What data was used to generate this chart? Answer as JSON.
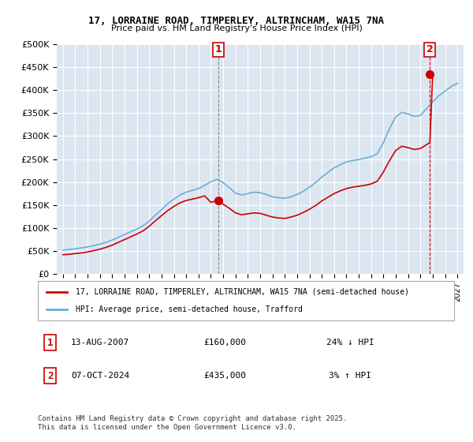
{
  "title": "17, LORRAINE ROAD, TIMPERLEY, ALTRINCHAM, WA15 7NA",
  "subtitle": "Price paid vs. HM Land Registry's House Price Index (HPI)",
  "ylabel": "",
  "xlabel": "",
  "ylim": [
    0,
    500000
  ],
  "yticks": [
    0,
    50000,
    100000,
    150000,
    200000,
    250000,
    300000,
    350000,
    400000,
    450000,
    500000
  ],
  "ytick_labels": [
    "£0",
    "£50K",
    "£100K",
    "£150K",
    "£200K",
    "£250K",
    "£300K",
    "£350K",
    "£400K",
    "£450K",
    "£500K"
  ],
  "xlim_start": 1994.5,
  "xlim_end": 2027.5,
  "xticks": [
    1995,
    1996,
    1997,
    1998,
    1999,
    2000,
    2001,
    2002,
    2003,
    2004,
    2005,
    2006,
    2007,
    2008,
    2009,
    2010,
    2011,
    2012,
    2013,
    2014,
    2015,
    2016,
    2017,
    2018,
    2019,
    2020,
    2021,
    2022,
    2023,
    2024,
    2025,
    2026,
    2027
  ],
  "background_color": "#dce6f1",
  "plot_bg_color": "#dce6f1",
  "grid_color": "#ffffff",
  "line_color_hpi": "#6baed6",
  "line_color_price": "#cc0000",
  "point1_x": 2007.617,
  "point1_y": 160000,
  "point2_x": 2024.769,
  "point2_y": 435000,
  "point1_label": "1",
  "point2_label": "2",
  "legend_line1": "17, LORRAINE ROAD, TIMPERLEY, ALTRINCHAM, WA15 7NA (semi-detached house)",
  "legend_line2": "HPI: Average price, semi-detached house, Trafford",
  "table_row1_num": "1",
  "table_row1_date": "13-AUG-2007",
  "table_row1_price": "£160,000",
  "table_row1_hpi": "24% ↓ HPI",
  "table_row2_num": "2",
  "table_row2_date": "07-OCT-2024",
  "table_row2_price": "£435,000",
  "table_row2_hpi": "3% ↑ HPI",
  "footnote": "Contains HM Land Registry data © Crown copyright and database right 2025.\nThis data is licensed under the Open Government Licence v3.0.",
  "hpi_years": [
    1995,
    1995.5,
    1996,
    1996.5,
    1997,
    1997.5,
    1998,
    1998.5,
    1999,
    1999.5,
    2000,
    2000.5,
    2001,
    2001.5,
    2002,
    2002.5,
    2003,
    2003.5,
    2004,
    2004.5,
    2005,
    2005.5,
    2006,
    2006.5,
    2007,
    2007.5,
    2008,
    2008.5,
    2009,
    2009.5,
    2010,
    2010.5,
    2011,
    2011.5,
    2012,
    2012.5,
    2013,
    2013.5,
    2014,
    2014.5,
    2015,
    2015.5,
    2016,
    2016.5,
    2017,
    2017.5,
    2018,
    2018.5,
    2019,
    2019.5,
    2020,
    2020.5,
    2021,
    2021.5,
    2022,
    2022.5,
    2023,
    2023.5,
    2024,
    2024.5,
    2025,
    2025.5,
    2026,
    2026.5,
    2027
  ],
  "hpi_values": [
    52000,
    53500,
    55000,
    57000,
    59000,
    62000,
    65000,
    69000,
    74000,
    80000,
    86000,
    92000,
    98000,
    105000,
    115000,
    128000,
    140000,
    153000,
    163000,
    172000,
    178000,
    182000,
    186000,
    193000,
    201000,
    206000,
    199000,
    188000,
    176000,
    172000,
    175000,
    178000,
    177000,
    173000,
    168000,
    166000,
    165000,
    168000,
    173000,
    180000,
    189000,
    199000,
    211000,
    221000,
    231000,
    238000,
    244000,
    247000,
    249000,
    252000,
    255000,
    262000,
    286000,
    317000,
    342000,
    352000,
    348000,
    343000,
    345000,
    360000,
    375000,
    388000,
    398000,
    408000,
    415000
  ],
  "price_years": [
    1995,
    1995.5,
    1996,
    1996.5,
    1997,
    1997.5,
    1998,
    1998.5,
    1999,
    1999.5,
    2000,
    2000.5,
    2001,
    2001.5,
    2002,
    2002.5,
    2003,
    2003.5,
    2004,
    2004.5,
    2005,
    2005.5,
    2006,
    2006.5,
    2007,
    2007.617,
    2008,
    2008.5,
    2009,
    2009.5,
    2010,
    2010.5,
    2011,
    2011.5,
    2012,
    2012.5,
    2013,
    2013.5,
    2014,
    2014.5,
    2015,
    2015.5,
    2016,
    2016.5,
    2017,
    2017.5,
    2018,
    2018.5,
    2019,
    2019.5,
    2020,
    2020.5,
    2021,
    2021.5,
    2022,
    2022.5,
    2023,
    2023.5,
    2024,
    2024.769,
    2025
  ],
  "price_values": [
    42000,
    43000,
    44500,
    46000,
    48000,
    51000,
    54000,
    58000,
    63000,
    69000,
    75000,
    81000,
    87000,
    94000,
    104000,
    116000,
    127000,
    138000,
    147000,
    155000,
    160000,
    163000,
    166000,
    170000,
    156000,
    160000,
    152000,
    143000,
    133000,
    129000,
    131000,
    133000,
    132000,
    128000,
    124000,
    122000,
    121000,
    124000,
    128000,
    134000,
    141000,
    149000,
    159000,
    167000,
    175000,
    181000,
    186000,
    189000,
    191000,
    193000,
    196000,
    202000,
    222000,
    247000,
    269000,
    278000,
    275000,
    271000,
    273000,
    286000,
    435000
  ]
}
